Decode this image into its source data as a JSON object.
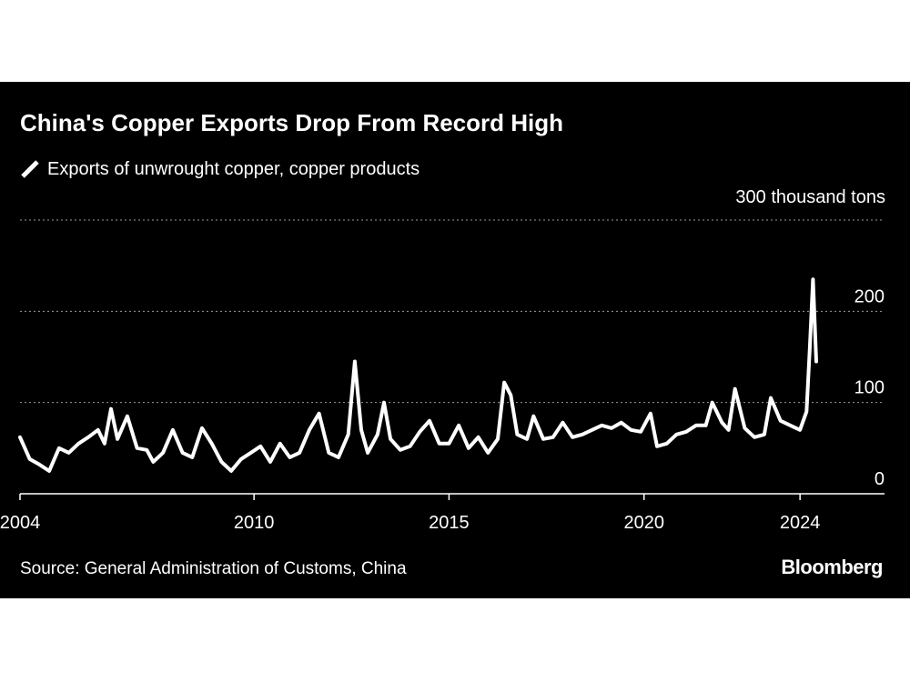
{
  "chart_data": {
    "type": "line",
    "title": "China's Copper Exports Drop From Record High",
    "legend": "Exports of unwrought copper, copper products",
    "unit_label": "300 thousand tons",
    "ylim": [
      0,
      300
    ],
    "yticks": [
      {
        "value": 0,
        "label": "0"
      },
      {
        "value": 100,
        "label": "100"
      },
      {
        "value": 200,
        "label": "200"
      }
    ],
    "xlim": [
      "2004-01",
      "2026-03"
    ],
    "xticks": [
      {
        "value": "2004-01",
        "label": "2004"
      },
      {
        "value": "2010-01",
        "label": "2010"
      },
      {
        "value": "2015-01",
        "label": "2015"
      },
      {
        "value": "2020-01",
        "label": "2020"
      },
      {
        "value": "2024-01",
        "label": "2024"
      }
    ],
    "grid": true,
    "line_color": "#ffffff",
    "series": [
      {
        "name": "Exports of unwrought copper, copper products",
        "points": [
          [
            "2004-01",
            62
          ],
          [
            "2004-04",
            38
          ],
          [
            "2004-07",
            32
          ],
          [
            "2004-10",
            25
          ],
          [
            "2005-01",
            50
          ],
          [
            "2005-04",
            45
          ],
          [
            "2005-07",
            55
          ],
          [
            "2005-10",
            62
          ],
          [
            "2006-01",
            70
          ],
          [
            "2006-03",
            55
          ],
          [
            "2006-05",
            93
          ],
          [
            "2006-07",
            60
          ],
          [
            "2006-10",
            85
          ],
          [
            "2007-01",
            50
          ],
          [
            "2007-04",
            48
          ],
          [
            "2007-06",
            35
          ],
          [
            "2007-09",
            45
          ],
          [
            "2007-12",
            70
          ],
          [
            "2008-03",
            45
          ],
          [
            "2008-06",
            40
          ],
          [
            "2008-09",
            72
          ],
          [
            "2008-12",
            55
          ],
          [
            "2009-03",
            35
          ],
          [
            "2009-06",
            25
          ],
          [
            "2009-09",
            38
          ],
          [
            "2009-12",
            45
          ],
          [
            "2010-03",
            52
          ],
          [
            "2010-06",
            35
          ],
          [
            "2010-09",
            55
          ],
          [
            "2010-12",
            40
          ],
          [
            "2011-03",
            45
          ],
          [
            "2011-06",
            70
          ],
          [
            "2011-09",
            88
          ],
          [
            "2011-12",
            45
          ],
          [
            "2012-03",
            40
          ],
          [
            "2012-06",
            65
          ],
          [
            "2012-08",
            145
          ],
          [
            "2012-10",
            70
          ],
          [
            "2012-12",
            45
          ],
          [
            "2013-03",
            65
          ],
          [
            "2013-05",
            100
          ],
          [
            "2013-07",
            60
          ],
          [
            "2013-10",
            48
          ],
          [
            "2014-01",
            52
          ],
          [
            "2014-04",
            68
          ],
          [
            "2014-07",
            80
          ],
          [
            "2014-10",
            55
          ],
          [
            "2015-01",
            55
          ],
          [
            "2015-04",
            75
          ],
          [
            "2015-07",
            50
          ],
          [
            "2015-10",
            62
          ],
          [
            "2016-01",
            45
          ],
          [
            "2016-04",
            60
          ],
          [
            "2016-06",
            122
          ],
          [
            "2016-08",
            108
          ],
          [
            "2016-10",
            65
          ],
          [
            "2017-01",
            60
          ],
          [
            "2017-03",
            85
          ],
          [
            "2017-06",
            60
          ],
          [
            "2017-09",
            62
          ],
          [
            "2017-12",
            78
          ],
          [
            "2018-03",
            62
          ],
          [
            "2018-06",
            65
          ],
          [
            "2018-09",
            70
          ],
          [
            "2018-12",
            75
          ],
          [
            "2019-03",
            72
          ],
          [
            "2019-06",
            78
          ],
          [
            "2019-09",
            70
          ],
          [
            "2019-12",
            68
          ],
          [
            "2020-03",
            88
          ],
          [
            "2020-05",
            52
          ],
          [
            "2020-08",
            55
          ],
          [
            "2020-11",
            65
          ],
          [
            "2021-02",
            68
          ],
          [
            "2021-05",
            75
          ],
          [
            "2021-08",
            75
          ],
          [
            "2021-10",
            100
          ],
          [
            "2022-01",
            78
          ],
          [
            "2022-03",
            70
          ],
          [
            "2022-05",
            115
          ],
          [
            "2022-08",
            72
          ],
          [
            "2022-11",
            62
          ],
          [
            "2023-02",
            65
          ],
          [
            "2023-04",
            105
          ],
          [
            "2023-07",
            80
          ],
          [
            "2023-10",
            75
          ],
          [
            "2024-01",
            70
          ],
          [
            "2024-03",
            90
          ],
          [
            "2024-04",
            160
          ],
          [
            "2024-05",
            235
          ],
          [
            "2024-06",
            145
          ]
        ]
      }
    ],
    "source": "Source: General Administration of Customs, China",
    "brand": "Bloomberg"
  }
}
